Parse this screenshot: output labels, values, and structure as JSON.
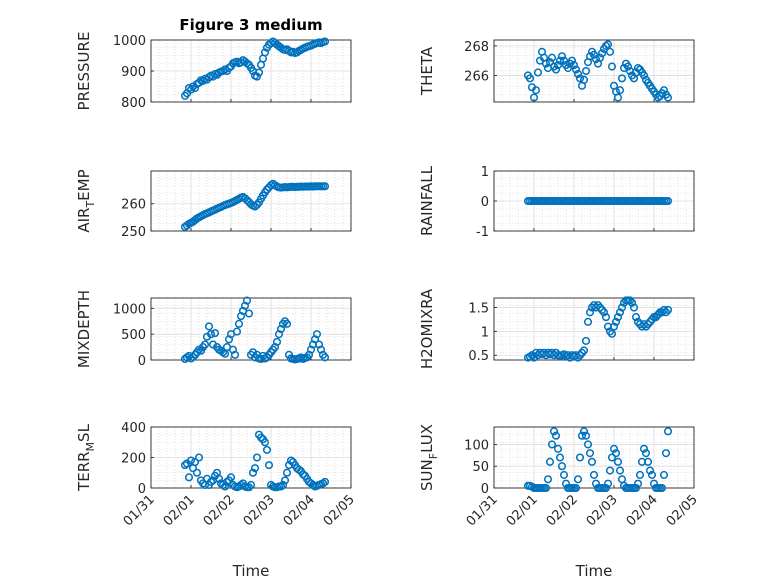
{
  "title": "Figure 3 medium",
  "marker_color": "#0072BD",
  "xlabel": "Time",
  "x_ticks": [
    "01/31",
    "02/01",
    "02/02",
    "02/03",
    "02/04",
    "02/05"
  ],
  "chart_data": [
    {
      "type": "scatter",
      "ylabel": "PRESSURE",
      "ylim": [
        800,
        1000
      ],
      "yticks": [
        800,
        900,
        1000
      ],
      "grid": true,
      "x": [
        0.85,
        0.9,
        0.95,
        1.0,
        1.05,
        1.1,
        1.15,
        1.2,
        1.25,
        1.3,
        1.35,
        1.4,
        1.45,
        1.5,
        1.55,
        1.6,
        1.65,
        1.7,
        1.75,
        1.8,
        1.85,
        1.9,
        1.95,
        2.0,
        2.05,
        2.1,
        2.15,
        2.2,
        2.25,
        2.3,
        2.35,
        2.4,
        2.45,
        2.5,
        2.55,
        2.6,
        2.65,
        2.7,
        2.75,
        2.8,
        2.85,
        2.9,
        2.95,
        3.0,
        3.05,
        3.1,
        3.15,
        3.2,
        3.25,
        3.3,
        3.35,
        3.4,
        3.45,
        3.5,
        3.55,
        3.6,
        3.65,
        3.7,
        3.75,
        3.8,
        3.85,
        3.9,
        3.95,
        4.0,
        4.05,
        4.1,
        4.15,
        4.2,
        4.25,
        4.3,
        4.35
      ],
      "y": [
        820,
        828,
        845,
        840,
        850,
        845,
        858,
        862,
        870,
        868,
        875,
        872,
        880,
        885,
        882,
        890,
        888,
        895,
        898,
        900,
        905,
        900,
        910,
        915,
        925,
        928,
        930,
        925,
        928,
        935,
        930,
        925,
        920,
        910,
        900,
        885,
        882,
        895,
        920,
        940,
        960,
        975,
        985,
        990,
        995,
        990,
        985,
        980,
        975,
        970,
        968,
        970,
        965,
        960,
        962,
        958,
        960,
        965,
        968,
        972,
        975,
        978,
        980,
        982,
        985,
        988,
        990,
        992,
        990,
        993,
        995
      ]
    },
    {
      "type": "scatter",
      "ylabel": "THETA",
      "ylim": [
        264.2,
        268.4
      ],
      "yticks": [
        266,
        268
      ],
      "grid": true,
      "x": [
        0.85,
        0.9,
        0.95,
        1.0,
        1.05,
        1.1,
        1.15,
        1.2,
        1.25,
        1.3,
        1.35,
        1.4,
        1.45,
        1.5,
        1.55,
        1.6,
        1.65,
        1.7,
        1.75,
        1.8,
        1.85,
        1.9,
        1.95,
        2.0,
        2.05,
        2.1,
        2.15,
        2.2,
        2.25,
        2.3,
        2.35,
        2.4,
        2.45,
        2.5,
        2.55,
        2.6,
        2.65,
        2.7,
        2.75,
        2.8,
        2.85,
        2.9,
        2.95,
        3.0,
        3.05,
        3.1,
        3.15,
        3.2,
        3.25,
        3.3,
        3.35,
        3.4,
        3.45,
        3.5,
        3.55,
        3.6,
        3.65,
        3.7,
        3.75,
        3.8,
        3.85,
        3.9,
        3.95,
        4.0,
        4.05,
        4.1,
        4.15,
        4.2,
        4.25,
        4.3,
        4.35
      ],
      "y": [
        266.0,
        265.8,
        265.2,
        264.5,
        265.0,
        266.2,
        267.0,
        267.6,
        267.2,
        266.8,
        266.5,
        266.9,
        267.2,
        266.6,
        266.4,
        266.7,
        267.0,
        267.3,
        267.0,
        266.7,
        266.5,
        266.8,
        267.0,
        266.7,
        266.4,
        266.1,
        265.8,
        265.3,
        265.7,
        266.3,
        266.9,
        267.3,
        267.6,
        267.4,
        267.1,
        266.8,
        267.2,
        267.5,
        267.8,
        268.0,
        268.1,
        267.6,
        266.6,
        265.3,
        264.9,
        264.5,
        265.0,
        265.8,
        266.5,
        266.8,
        266.6,
        266.3,
        266.0,
        265.8,
        266.2,
        266.5,
        266.4,
        266.2,
        266.0,
        265.7,
        265.5,
        265.3,
        265.1,
        264.9,
        264.7,
        264.5,
        264.6,
        264.8,
        265.0,
        264.7,
        264.5
      ]
    },
    {
      "type": "scatter",
      "ylabel": "AIR_TEMP",
      "ylim": [
        250,
        272
      ],
      "yticks": [
        250,
        260
      ],
      "grid": true,
      "x": [
        0.85,
        0.9,
        0.95,
        1.0,
        1.05,
        1.1,
        1.15,
        1.2,
        1.25,
        1.3,
        1.35,
        1.4,
        1.45,
        1.5,
        1.55,
        1.6,
        1.65,
        1.7,
        1.75,
        1.8,
        1.85,
        1.9,
        1.95,
        2.0,
        2.05,
        2.1,
        2.15,
        2.2,
        2.25,
        2.3,
        2.35,
        2.4,
        2.45,
        2.5,
        2.55,
        2.6,
        2.65,
        2.7,
        2.75,
        2.8,
        2.85,
        2.9,
        2.95,
        3.0,
        3.05,
        3.1,
        3.15,
        3.2,
        3.25,
        3.3,
        3.35,
        3.4,
        3.45,
        3.5,
        3.55,
        3.6,
        3.65,
        3.7,
        3.75,
        3.8,
        3.85,
        3.9,
        3.95,
        4.0,
        4.05,
        4.1,
        4.15,
        4.2,
        4.25,
        4.3,
        4.35
      ],
      "y": [
        251.5,
        252.0,
        252.6,
        253.0,
        253.4,
        254.0,
        254.6,
        255.0,
        255.4,
        255.8,
        256.2,
        256.5,
        256.8,
        257.2,
        257.5,
        257.8,
        258.2,
        258.5,
        258.8,
        259.2,
        259.5,
        259.8,
        260.0,
        260.3,
        260.6,
        261.0,
        261.4,
        261.8,
        262.2,
        262.5,
        262.0,
        261.3,
        260.6,
        259.8,
        259.3,
        259.0,
        259.6,
        260.5,
        261.8,
        263.0,
        264.2,
        265.2,
        266.0,
        266.8,
        267.3,
        266.8,
        266.3,
        266.0,
        265.9,
        266.0,
        266.1,
        266.0,
        266.1,
        266.2,
        266.2,
        266.1,
        266.2,
        266.2,
        266.3,
        266.2,
        266.3,
        266.3,
        266.3,
        266.4,
        266.3,
        266.4,
        266.4,
        266.4,
        266.4,
        266.4,
        266.4
      ]
    },
    {
      "type": "scatter",
      "ylabel": "RAINFALL",
      "ylim": [
        -1,
        1
      ],
      "yticks": [
        -1,
        0,
        1
      ],
      "grid": true,
      "x": [
        0.85,
        0.9,
        0.95,
        1.0,
        1.05,
        1.1,
        1.15,
        1.2,
        1.25,
        1.3,
        1.35,
        1.4,
        1.45,
        1.5,
        1.55,
        1.6,
        1.65,
        1.7,
        1.75,
        1.8,
        1.85,
        1.9,
        1.95,
        2.0,
        2.05,
        2.1,
        2.15,
        2.2,
        2.25,
        2.3,
        2.35,
        2.4,
        2.45,
        2.5,
        2.55,
        2.6,
        2.65,
        2.7,
        2.75,
        2.8,
        2.85,
        2.9,
        2.95,
        3.0,
        3.05,
        3.1,
        3.15,
        3.2,
        3.25,
        3.3,
        3.35,
        3.4,
        3.45,
        3.5,
        3.55,
        3.6,
        3.65,
        3.7,
        3.75,
        3.8,
        3.85,
        3.9,
        3.95,
        4.0,
        4.05,
        4.1,
        4.15,
        4.2,
        4.25,
        4.3,
        4.35
      ],
      "y": [
        0,
        0,
        0,
        0,
        0,
        0,
        0,
        0,
        0,
        0,
        0,
        0,
        0,
        0,
        0,
        0,
        0,
        0,
        0,
        0,
        0,
        0,
        0,
        0,
        0,
        0,
        0,
        0,
        0,
        0,
        0,
        0,
        0,
        0,
        0,
        0,
        0,
        0,
        0,
        0,
        0,
        0,
        0,
        0,
        0,
        0,
        0,
        0,
        0,
        0,
        0,
        0,
        0,
        0,
        0,
        0,
        0,
        0,
        0,
        0,
        0,
        0,
        0,
        0,
        0,
        0,
        0,
        0,
        0,
        0,
        0
      ]
    },
    {
      "type": "scatter",
      "ylabel": "MIXDEPTH",
      "ylim": [
        0,
        1200
      ],
      "yticks": [
        0,
        500,
        1000
      ],
      "grid": true,
      "x": [
        0.85,
        0.9,
        0.95,
        1.0,
        1.05,
        1.1,
        1.15,
        1.2,
        1.25,
        1.3,
        1.35,
        1.4,
        1.45,
        1.5,
        1.55,
        1.6,
        1.65,
        1.7,
        1.75,
        1.8,
        1.85,
        1.9,
        1.95,
        2.0,
        2.05,
        2.1,
        2.15,
        2.2,
        2.25,
        2.3,
        2.35,
        2.4,
        2.45,
        2.5,
        2.55,
        2.6,
        2.65,
        2.7,
        2.75,
        2.8,
        2.85,
        2.9,
        2.95,
        3.0,
        3.05,
        3.1,
        3.15,
        3.2,
        3.25,
        3.3,
        3.35,
        3.4,
        3.45,
        3.5,
        3.55,
        3.6,
        3.65,
        3.7,
        3.75,
        3.8,
        3.85,
        3.9,
        3.95,
        4.0,
        4.05,
        4.1,
        4.15,
        4.2,
        4.25,
        4.3,
        4.35
      ],
      "y": [
        20,
        50,
        80,
        30,
        60,
        100,
        150,
        200,
        180,
        250,
        300,
        450,
        650,
        500,
        300,
        520,
        250,
        200,
        180,
        150,
        120,
        250,
        400,
        500,
        200,
        100,
        550,
        700,
        850,
        950,
        1050,
        1150,
        900,
        100,
        150,
        50,
        100,
        30,
        20,
        80,
        30,
        50,
        100,
        150,
        200,
        250,
        350,
        500,
        600,
        700,
        750,
        700,
        100,
        30,
        20,
        10,
        20,
        30,
        50,
        20,
        40,
        50,
        100,
        200,
        300,
        400,
        500,
        300,
        200,
        100,
        50
      ]
    },
    {
      "type": "scatter",
      "ylabel": "H2OMIXRA",
      "ylim": [
        0.4,
        1.7
      ],
      "yticks": [
        0.5,
        1,
        1.5
      ],
      "grid": true,
      "x": [
        0.85,
        0.9,
        0.95,
        1.0,
        1.05,
        1.1,
        1.15,
        1.2,
        1.25,
        1.3,
        1.35,
        1.4,
        1.45,
        1.5,
        1.55,
        1.6,
        1.65,
        1.7,
        1.75,
        1.8,
        1.85,
        1.9,
        1.95,
        2.0,
        2.05,
        2.1,
        2.15,
        2.2,
        2.25,
        2.3,
        2.35,
        2.4,
        2.45,
        2.5,
        2.55,
        2.6,
        2.65,
        2.7,
        2.75,
        2.8,
        2.85,
        2.9,
        2.95,
        3.0,
        3.05,
        3.1,
        3.15,
        3.2,
        3.25,
        3.3,
        3.35,
        3.4,
        3.45,
        3.5,
        3.55,
        3.6,
        3.65,
        3.7,
        3.75,
        3.8,
        3.85,
        3.9,
        3.95,
        4.0,
        4.05,
        4.1,
        4.15,
        4.2,
        4.25,
        4.3,
        4.35
      ],
      "y": [
        0.45,
        0.47,
        0.5,
        0.45,
        0.55,
        0.5,
        0.55,
        0.52,
        0.55,
        0.5,
        0.55,
        0.52,
        0.55,
        0.5,
        0.55,
        0.5,
        0.48,
        0.5,
        0.52,
        0.48,
        0.5,
        0.45,
        0.5,
        0.48,
        0.5,
        0.45,
        0.5,
        0.55,
        0.6,
        0.8,
        1.2,
        1.4,
        1.5,
        1.55,
        1.5,
        1.55,
        1.5,
        1.45,
        1.4,
        1.3,
        1.1,
        1.0,
        0.95,
        1.1,
        1.2,
        1.3,
        1.4,
        1.5,
        1.6,
        1.65,
        1.65,
        1.65,
        1.6,
        1.5,
        1.3,
        1.2,
        1.15,
        1.1,
        1.15,
        1.1,
        1.15,
        1.2,
        1.25,
        1.3,
        1.3,
        1.35,
        1.4,
        1.4,
        1.45,
        1.4,
        1.45
      ]
    },
    {
      "type": "scatter",
      "ylabel": "TERR_MSL",
      "ylim": [
        0,
        400
      ],
      "yticks": [
        0,
        200,
        400
      ],
      "grid": true,
      "x": [
        0.85,
        0.9,
        0.95,
        1.0,
        1.05,
        1.1,
        1.15,
        1.2,
        1.25,
        1.3,
        1.35,
        1.4,
        1.45,
        1.5,
        1.55,
        1.6,
        1.65,
        1.7,
        1.75,
        1.8,
        1.85,
        1.9,
        1.95,
        2.0,
        2.05,
        2.1,
        2.15,
        2.2,
        2.25,
        2.3,
        2.35,
        2.4,
        2.45,
        2.5,
        2.55,
        2.6,
        2.65,
        2.7,
        2.75,
        2.8,
        2.85,
        2.9,
        2.95,
        3.0,
        3.05,
        3.1,
        3.15,
        3.2,
        3.25,
        3.3,
        3.35,
        3.4,
        3.45,
        3.5,
        3.55,
        3.6,
        3.65,
        3.7,
        3.75,
        3.8,
        3.85,
        3.9,
        3.95,
        4.0,
        4.05,
        4.1,
        4.15,
        4.2,
        4.25,
        4.3,
        4.35
      ],
      "y": [
        150,
        160,
        70,
        180,
        130,
        170,
        100,
        200,
        50,
        30,
        20,
        60,
        20,
        40,
        50,
        80,
        100,
        60,
        30,
        20,
        10,
        40,
        50,
        70,
        20,
        10,
        5,
        10,
        20,
        30,
        10,
        5,
        5,
        20,
        100,
        130,
        200,
        350,
        330,
        320,
        300,
        250,
        150,
        20,
        10,
        5,
        5,
        10,
        10,
        20,
        50,
        100,
        150,
        180,
        170,
        150,
        130,
        120,
        110,
        90,
        80,
        60,
        40,
        30,
        20,
        10,
        15,
        20,
        25,
        30,
        40
      ]
    },
    {
      "type": "scatter",
      "ylabel": "SUN_FLUX",
      "ylim": [
        0,
        140
      ],
      "yticks": [
        0,
        50,
        100
      ],
      "grid": true,
      "x": [
        0.85,
        0.9,
        0.95,
        1.0,
        1.05,
        1.1,
        1.15,
        1.2,
        1.25,
        1.3,
        1.35,
        1.4,
        1.45,
        1.5,
        1.55,
        1.6,
        1.65,
        1.7,
        1.75,
        1.8,
        1.85,
        1.9,
        1.95,
        2.0,
        2.05,
        2.1,
        2.15,
        2.2,
        2.25,
        2.3,
        2.35,
        2.4,
        2.45,
        2.5,
        2.55,
        2.6,
        2.65,
        2.7,
        2.75,
        2.8,
        2.85,
        2.9,
        2.95,
        3.0,
        3.05,
        3.1,
        3.15,
        3.2,
        3.25,
        3.3,
        3.35,
        3.4,
        3.45,
        3.5,
        3.55,
        3.6,
        3.65,
        3.7,
        3.75,
        3.8,
        3.85,
        3.9,
        3.95,
        4.0,
        4.05,
        4.1,
        4.15,
        4.2,
        4.25,
        4.3,
        4.35
      ],
      "y": [
        5,
        5,
        3,
        0,
        0,
        0,
        0,
        0,
        0,
        0,
        20,
        60,
        100,
        130,
        120,
        90,
        70,
        50,
        30,
        10,
        0,
        0,
        0,
        0,
        0,
        20,
        70,
        120,
        130,
        120,
        100,
        80,
        60,
        30,
        10,
        0,
        0,
        0,
        0,
        0,
        10,
        40,
        70,
        90,
        80,
        60,
        40,
        20,
        5,
        0,
        0,
        0,
        0,
        0,
        0,
        10,
        30,
        60,
        90,
        80,
        60,
        40,
        30,
        10,
        0,
        0,
        0,
        0,
        30,
        80,
        130
      ]
    }
  ]
}
